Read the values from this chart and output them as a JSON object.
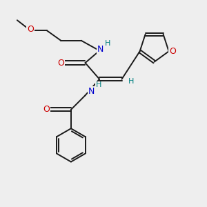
{
  "bg_color": "#eeeeee",
  "bond_color": "#1a1a1a",
  "N_color": "#0000cc",
  "O_color": "#cc0000",
  "H_color": "#008080",
  "C_color": "#1a1a1a",
  "line_width": 1.4,
  "figsize": [
    3.0,
    3.0
  ],
  "dpi": 100,
  "xlim": [
    0,
    10
  ],
  "ylim": [
    0,
    10
  ]
}
